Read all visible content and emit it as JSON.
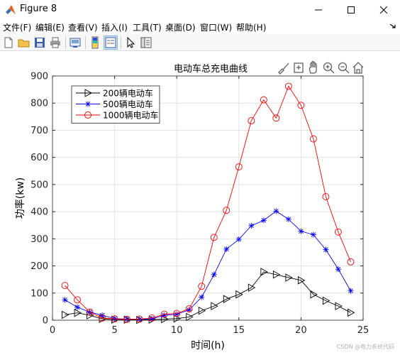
{
  "window": {
    "title": "Figure 8"
  },
  "menu": [
    "文件(F)",
    "编辑(E)",
    "查看(V)",
    "插入(I)",
    "工具(T)",
    "桌面(D)",
    "窗口(W)",
    "帮助(H)"
  ],
  "toolbar": {
    "buttons": [
      "new-figure-icon",
      "open-file-icon",
      "save-icon",
      "print-icon",
      "link-plot-icon",
      "colorbar-icon",
      "legend-icon",
      "pointer-icon",
      "property-inspector-icon"
    ]
  },
  "axes_toolbar": [
    "brush-icon",
    "data-tips-icon",
    "pan-icon",
    "zoom-in-icon",
    "zoom-out-icon",
    "home-icon"
  ],
  "watermark": "CSDN @电力系统代码",
  "chart_data": {
    "type": "line",
    "title": "电动车总充电曲线",
    "xlabel": "时间(h)",
    "ylabel": "功率(kw)",
    "xlim": [
      0,
      25
    ],
    "ylim": [
      0,
      900
    ],
    "xticks": [
      0,
      5,
      10,
      15,
      20,
      25
    ],
    "yticks": [
      0,
      100,
      200,
      300,
      400,
      500,
      600,
      700,
      800,
      900
    ],
    "grid": true,
    "legend_position": "top-left",
    "x": [
      1,
      2,
      3,
      4,
      5,
      6,
      7,
      8,
      9,
      10,
      11,
      12,
      13,
      14,
      15,
      16,
      17,
      18,
      19,
      20,
      21,
      22,
      23,
      24
    ],
    "series": [
      {
        "name": "200辆电动车",
        "marker": "triangle-right",
        "color": "#000000",
        "values": [
          20,
          27,
          18,
          5,
          2,
          2,
          1,
          2,
          4,
          6,
          12,
          35,
          52,
          78,
          95,
          120,
          178,
          168,
          157,
          147,
          95,
          72,
          52,
          28
        ]
      },
      {
        "name": "500辆电动车",
        "marker": "asterisk",
        "color": "#0000ff",
        "values": [
          75,
          48,
          30,
          18,
          6,
          4,
          3,
          5,
          18,
          22,
          38,
          85,
          168,
          262,
          298,
          348,
          368,
          402,
          372,
          328,
          315,
          260,
          188,
          108
        ]
      },
      {
        "name": "1000辆电动车",
        "marker": "circle",
        "color": "#ff0000",
        "values": [
          128,
          75,
          30,
          8,
          5,
          3,
          4,
          8,
          22,
          25,
          42,
          125,
          305,
          405,
          565,
          735,
          812,
          745,
          862,
          792,
          668,
          455,
          325,
          215
        ]
      }
    ]
  }
}
